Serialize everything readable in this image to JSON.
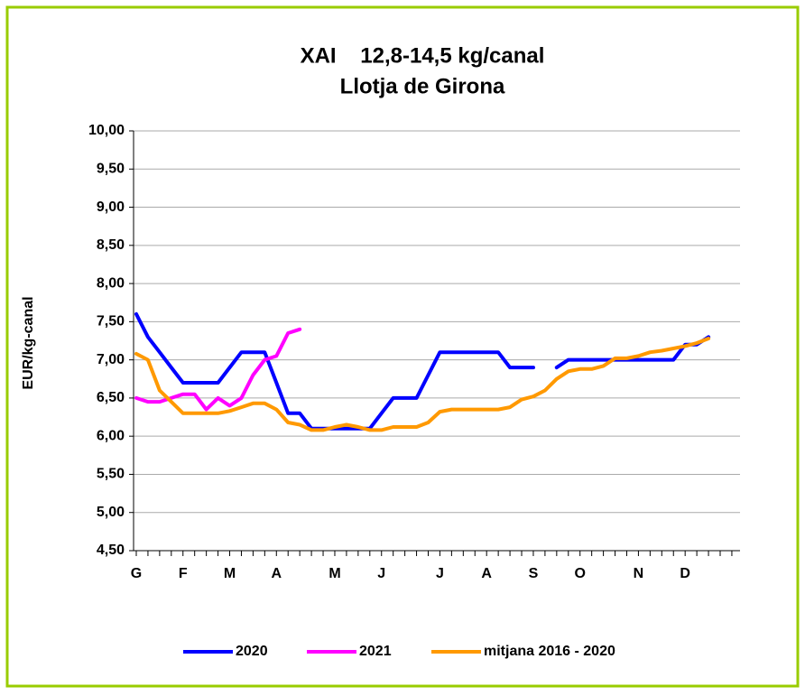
{
  "chart_data": {
    "type": "line",
    "title": "XAI    12,8-14,5 kg/canal",
    "subtitle": "Llotja de Girona",
    "y_label": "EUR/kg-canal",
    "categories": [
      "G",
      null,
      null,
      null,
      "F",
      null,
      null,
      null,
      "M",
      null,
      null,
      null,
      "A",
      null,
      null,
      null,
      null,
      "M",
      null,
      null,
      null,
      "J",
      null,
      null,
      null,
      null,
      "J",
      null,
      null,
      null,
      "A",
      null,
      null,
      null,
      "S",
      null,
      null,
      null,
      "O",
      null,
      null,
      null,
      null,
      "N",
      null,
      null,
      null,
      "D",
      null,
      null,
      null,
      null
    ],
    "series": [
      {
        "name": "2020",
        "color": "#0000ff",
        "values": [
          7.6,
          7.3,
          7.1,
          6.9,
          6.7,
          6.7,
          6.7,
          6.7,
          6.9,
          7.1,
          7.1,
          7.1,
          6.7,
          6.3,
          6.3,
          6.1,
          6.1,
          6.1,
          6.1,
          6.1,
          6.1,
          6.3,
          6.5,
          6.5,
          6.5,
          6.8,
          7.1,
          7.1,
          7.1,
          7.1,
          7.1,
          7.1,
          6.9,
          6.9,
          6.9,
          null,
          6.9,
          7.0,
          7.0,
          7.0,
          7.0,
          7.0,
          7.0,
          7.0,
          7.0,
          7.0,
          7.0,
          7.2,
          7.2,
          7.3,
          null,
          null
        ]
      },
      {
        "name": "2021",
        "color": "#ff00ff",
        "values": [
          6.5,
          6.45,
          6.45,
          6.5,
          6.55,
          6.55,
          6.35,
          6.5,
          6.4,
          6.5,
          6.8,
          7.0,
          7.05,
          7.35,
          7.4,
          null,
          null,
          null,
          null,
          null,
          null,
          null,
          null,
          null,
          null,
          null,
          null,
          null,
          null,
          null,
          null,
          null,
          null,
          null,
          null,
          null,
          null,
          null,
          null,
          null,
          null,
          null,
          null,
          null,
          null,
          null,
          null,
          null,
          null,
          null,
          null,
          null
        ]
      },
      {
        "name": "mitjana 2016 - 2020",
        "color": "#ff9900",
        "values": [
          7.08,
          7.0,
          6.6,
          6.45,
          6.3,
          6.3,
          6.3,
          6.3,
          6.33,
          6.38,
          6.43,
          6.43,
          6.35,
          6.18,
          6.15,
          6.08,
          6.08,
          6.12,
          6.15,
          6.12,
          6.08,
          6.08,
          6.12,
          6.12,
          6.12,
          6.18,
          6.32,
          6.35,
          6.35,
          6.35,
          6.35,
          6.35,
          6.38,
          6.48,
          6.52,
          6.6,
          6.75,
          6.85,
          6.88,
          6.88,
          6.92,
          7.02,
          7.02,
          7.05,
          7.1,
          7.12,
          7.15,
          7.18,
          7.22,
          7.28,
          null,
          null
        ]
      }
    ],
    "ylim": [
      4.5,
      10
    ],
    "yticks": [
      {
        "value": 4.5,
        "label": "4,50"
      },
      {
        "value": 5,
        "label": "5,00"
      },
      {
        "value": 5.5,
        "label": "5,50"
      },
      {
        "value": 6,
        "label": "6,00"
      },
      {
        "value": 6.5,
        "label": "6,50"
      },
      {
        "value": 7,
        "label": "7,00"
      },
      {
        "value": 7.5,
        "label": "7,50"
      },
      {
        "value": 8,
        "label": "8,00"
      },
      {
        "value": 8.5,
        "label": "8,50"
      },
      {
        "value": 9,
        "label": "9,00"
      },
      {
        "value": 9.5,
        "label": "9,50"
      },
      {
        "value": 10,
        "label": "10,00"
      }
    ],
    "grid": true,
    "legend": "bottom"
  }
}
